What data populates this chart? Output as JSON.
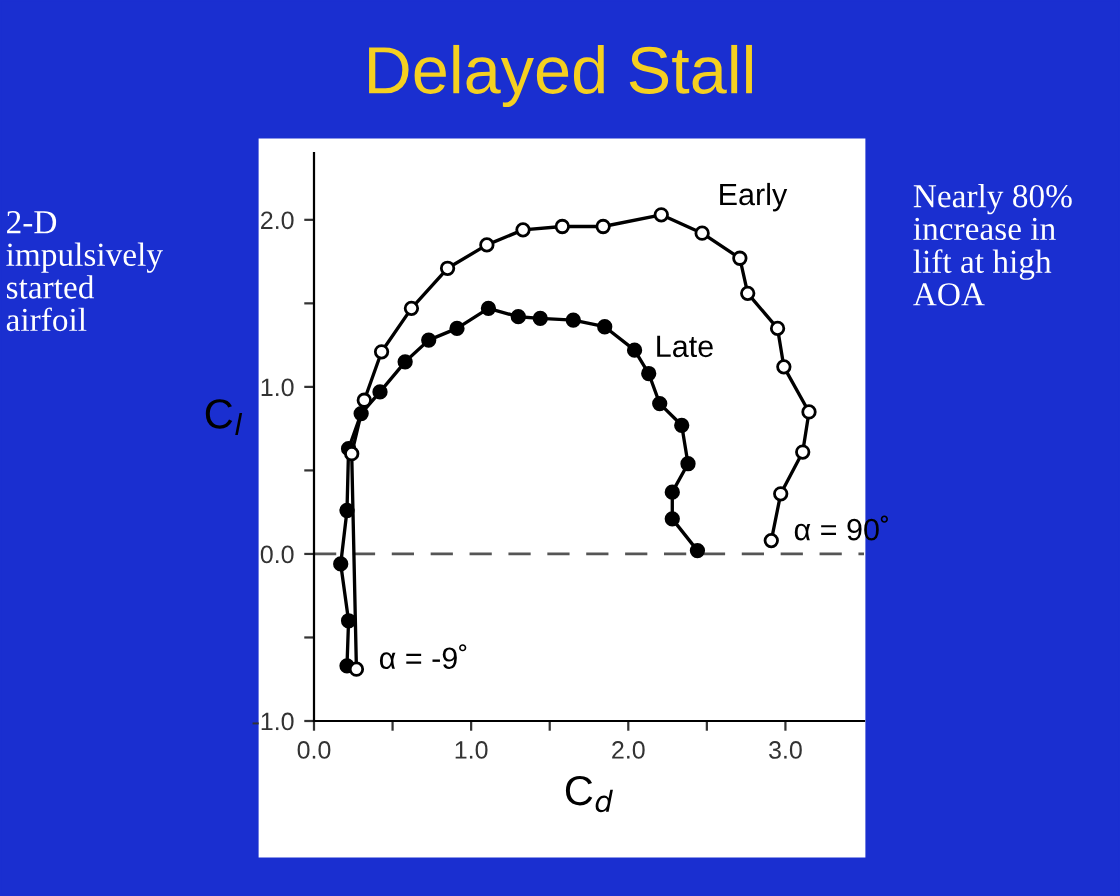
{
  "chart_data": {
    "type": "line",
    "title": "Delayed Stall",
    "xlabel": "C$_{d}$",
    "ylabel": "C$_{l}$",
    "series": [
      {
        "name": "Early",
        "color": "#000000",
        "marker": "circle",
        "x": [
          0.27,
          0.24,
          0.32,
          0.43,
          0.62,
          0.85,
          1.1,
          1.33,
          1.58,
          1.84,
          2.21,
          2.47,
          2.71,
          2.76,
          2.95,
          2.99,
          3.15,
          3.11,
          2.97,
          2.91
        ],
        "values": [
          -0.69,
          0.6,
          0.92,
          1.21,
          1.47,
          1.71,
          1.85,
          1.94,
          1.96,
          1.96,
          2.03,
          1.92,
          1.77,
          1.56,
          1.35,
          1.12,
          0.85,
          0.61,
          0.36,
          0.08
        ]
      },
      {
        "name": "Late",
        "color": "#000000",
        "marker": "circle",
        "x": [
          0.21,
          0.22,
          0.17,
          0.21,
          0.22,
          0.3,
          0.42,
          0.58,
          0.73,
          0.91,
          1.11,
          1.3,
          1.44,
          1.65,
          1.85,
          2.04,
          2.13,
          2.2,
          2.34,
          2.38,
          2.28,
          2.28,
          2.44
        ],
        "values": [
          -0.67,
          -0.4,
          -0.06,
          0.26,
          0.63,
          0.84,
          0.97,
          1.15,
          1.28,
          1.35,
          1.47,
          1.42,
          1.41,
          1.4,
          1.36,
          1.22,
          1.08,
          0.9,
          0.77,
          0.54,
          0.37,
          0.21,
          0.02
        ]
      }
    ],
    "xlim": [
      0,
      3.5
    ],
    "ylim": [
      -1.0,
      2.4
    ],
    "xticks": [
      {
        "value": 0,
        "label": "0.0"
      },
      {
        "value": 0.5,
        "label": null
      },
      {
        "value": 1,
        "label": "1.0"
      },
      {
        "value": 1.5,
        "label": null
      },
      {
        "value": 2,
        "label": "2.0"
      },
      {
        "value": 2.5,
        "label": null
      },
      {
        "value": 3,
        "label": "3.0"
      }
    ],
    "yticks": [
      {
        "value": -1,
        "label": "-1.0"
      },
      {
        "value": -0.5,
        "label": null
      },
      {
        "value": 0,
        "label": "0.0"
      },
      {
        "value": 0.5,
        "label": null
      },
      {
        "value": 1,
        "label": "1.0"
      },
      {
        "value": 1.5,
        "label": null
      },
      {
        "value": 2,
        "label": "2.0"
      }
    ],
    "ref_lines": [
      {
        "axis": "y",
        "value": 0,
        "label": null,
        "color": "#555555",
        "line_style": "dashed"
      }
    ],
    "annotations": [
      {
        "text": "α = 90˚",
        "x": 2.91,
        "y": 0.08
      },
      {
        "text": "α = -9˚",
        "x": 0.27,
        "y": -0.69
      },
      "2-D\nimpulsively\nstarted\nairfoil",
      "Nearly 80%\nincrease in\nlift at high\nAOA"
    ],
    "grid": false,
    "legend": false
  }
}
